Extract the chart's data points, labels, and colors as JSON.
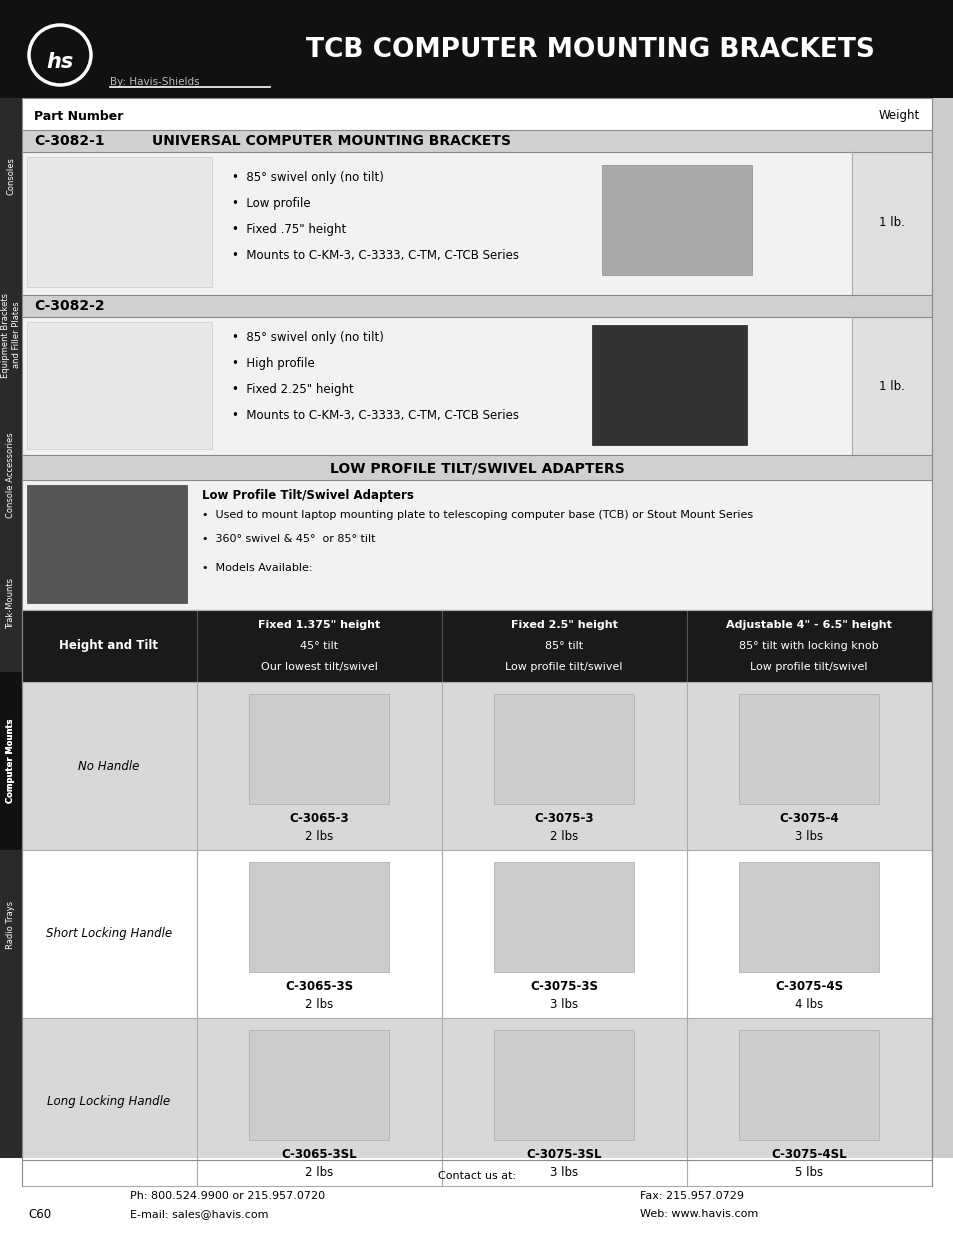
{
  "title": "TCB COMPUTER MOUNTING BRACKETS",
  "by_text": "By: Havis-Shields",
  "header_bg": "#111111",
  "page_bg": "#ffffff",
  "part1_number": "C-3082-1",
  "part1_title": "UNIVERSAL COMPUTER MOUNTING BRACKETS",
  "part1_bullets": [
    "85° swivel only (no tilt)",
    "Low profile",
    "Fixed .75\" height",
    "Mounts to C-KM-3, C-3333, C-TM, C-TCB Series"
  ],
  "part1_weight": "1 lb.",
  "part2_number": "C-3082-2",
  "part2_bullets": [
    "85° swivel only (no tilt)",
    "High profile",
    "Fixed 2.25\" height",
    "Mounts to C-KM-3, C-3333, C-TM, C-TCB Series"
  ],
  "part2_weight": "1 lb.",
  "section2_title": "LOW PROFILE TILT/SWIVEL ADAPTERS",
  "section2_subtitle": "Low Profile Tilt/Swivel Adapters",
  "section2_bullets": [
    "Used to mount laptop mounting plate to telescoping computer base (TCB) or Stout Mount Series",
    "360° swivel & 45°  or 85° tilt",
    "Models Available:"
  ],
  "col_header_label": "Height and Tilt",
  "col1_header_lines": [
    "Fixed 1.375\" height",
    "45° tilt",
    "Our lowest tilt/swivel"
  ],
  "col2_header_lines": [
    "Fixed 2.5\" height",
    "85° tilt",
    "Low profile tilt/swivel"
  ],
  "col3_header_lines": [
    "Adjustable 4\" - 6.5\" height",
    "85° tilt with locking knob",
    "Low profile tilt/swivel"
  ],
  "rows": [
    {
      "label": "No Handle",
      "cells": [
        "C-3065-3\n2 lbs",
        "C-3075-3\n2 lbs",
        "C-3075-4\n3 lbs"
      ],
      "bg": "#d8d8d8"
    },
    {
      "label": "Short Locking Handle",
      "cells": [
        "C-3065-3S\n2 lbs",
        "C-3075-3S\n3 lbs",
        "C-3075-4S\n4 lbs"
      ],
      "bg": "#ffffff"
    },
    {
      "label": "Long Locking Handle",
      "cells": [
        "C-3065-3SL\n2 lbs",
        "C-3075-3SL\n3 lbs",
        "C-3075-4SL\n5 lbs"
      ],
      "bg": "#d8d8d8"
    }
  ],
  "sidebar_labels": [
    "Consoles",
    "Equipment Brackets\nand Filler Plates",
    "Console Accessories",
    "Trak-Mounts",
    "Computer Mounts",
    "Radio Trays"
  ],
  "footer_contact": "Contact us at:",
  "footer_ph": "Ph: 800.524.9900 or 215.957.0720",
  "footer_email": "E-mail: sales@havis.com",
  "footer_fax": "Fax: 215.957.0729",
  "footer_web": "Web: www.havis.com",
  "footer_page": "C60"
}
